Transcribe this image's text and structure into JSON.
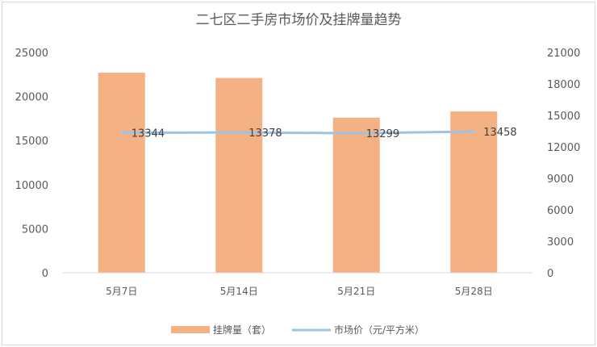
{
  "chart_data": {
    "type": "bar",
    "title": "二七区二手房市场价及挂牌量趋势",
    "categories": [
      "5月7日",
      "5月14日",
      "5月21日",
      "5月28日"
    ],
    "series": [
      {
        "name": "挂牌量（套）",
        "type": "bar",
        "axis": "left",
        "values": [
          22700,
          22100,
          17600,
          18300
        ],
        "color": "#F4B183"
      },
      {
        "name": "市场价（元/平方米）",
        "type": "line",
        "axis": "right",
        "values": [
          13344,
          13378,
          13299,
          13458
        ],
        "labels": [
          "13344",
          "13378",
          "13299",
          "13458"
        ],
        "color": "#9DC3E6"
      }
    ],
    "y_left": {
      "min": 0,
      "max": 25000,
      "ticks": [
        "0",
        "5000",
        "10000",
        "15000",
        "20000",
        "25000"
      ]
    },
    "y_right": {
      "min": 0,
      "max": 21000,
      "ticks": [
        "0",
        "3000",
        "6000",
        "9000",
        "12000",
        "15000",
        "18000",
        "21000"
      ]
    },
    "grid": false,
    "legend_position": "bottom"
  }
}
